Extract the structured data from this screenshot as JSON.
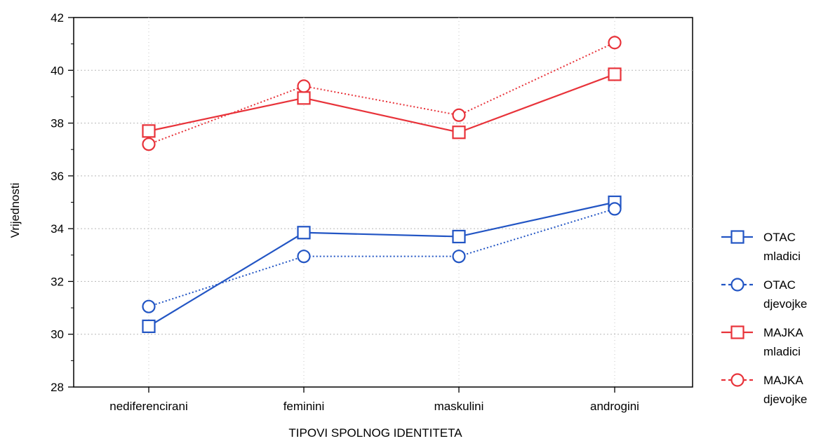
{
  "chart_data": {
    "type": "line",
    "title": "",
    "xlabel": "TIPOVI SPOLNOG IDENTITETA",
    "ylabel": "Vrijednosti",
    "categories": [
      "nediferencirani",
      "feminini",
      "maskulini",
      "androgini"
    ],
    "ylim": [
      28,
      42
    ],
    "yticks": [
      28,
      30,
      32,
      34,
      36,
      38,
      40,
      42
    ],
    "grid": true,
    "legend_position": "right",
    "series": [
      {
        "name": "OTAC",
        "name2": "mladici",
        "color": "#2255c4",
        "marker": "square",
        "line": "solid",
        "values": [
          30.3,
          33.85,
          33.7,
          35.0
        ]
      },
      {
        "name": "OTAC",
        "name2": "djevojke",
        "color": "#2255c4",
        "marker": "circle",
        "line": "dotted",
        "values": [
          31.05,
          32.95,
          32.95,
          34.75
        ]
      },
      {
        "name": "MAJKA",
        "name2": "mladici",
        "color": "#e8333a",
        "marker": "square",
        "line": "solid",
        "values": [
          37.7,
          38.95,
          37.65,
          39.85
        ]
      },
      {
        "name": "MAJKA",
        "name2": "djevojke",
        "color": "#e8333a",
        "marker": "circle",
        "line": "dotted",
        "values": [
          37.2,
          39.4,
          38.3,
          41.05
        ]
      }
    ]
  }
}
